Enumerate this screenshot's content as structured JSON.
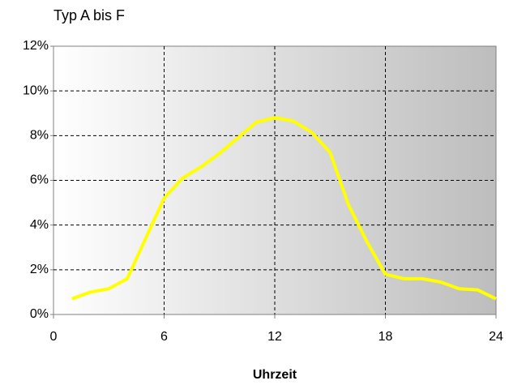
{
  "chart_data": {
    "type": "line",
    "title": "Typ A bis F",
    "x_label": "Uhrzeit",
    "x": [
      1,
      2,
      3,
      4,
      5,
      6,
      7,
      8,
      9,
      10,
      11,
      12,
      13,
      14,
      15,
      16,
      17,
      18,
      19,
      20,
      21,
      22,
      23,
      24
    ],
    "values": [
      0.7,
      1.0,
      1.15,
      1.6,
      3.4,
      5.2,
      6.1,
      6.6,
      7.2,
      7.9,
      8.6,
      8.8,
      8.65,
      8.15,
      7.25,
      4.9,
      3.25,
      1.8,
      1.6,
      1.6,
      1.45,
      1.15,
      1.1,
      0.7
    ],
    "color": "#ffff00",
    "xlim": [
      0,
      24
    ],
    "xticks": [
      0,
      6,
      12,
      18,
      24
    ],
    "ylim": [
      0,
      12
    ],
    "yticks": [
      {
        "value": 0,
        "label": "0%"
      },
      {
        "value": 2,
        "label": "2%"
      },
      {
        "value": 4,
        "label": "4%"
      },
      {
        "value": 6,
        "label": "6%"
      },
      {
        "value": 8,
        "label": "8%"
      },
      {
        "value": 10,
        "label": "10%"
      },
      {
        "value": 12,
        "label": "12%"
      }
    ],
    "grid": true
  }
}
